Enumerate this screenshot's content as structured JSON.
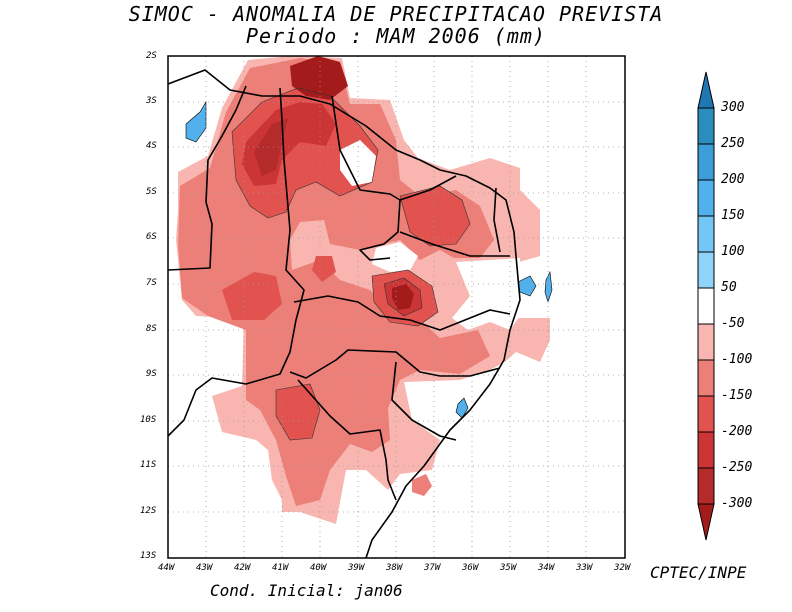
{
  "title": {
    "line1": "SIMOC -  ANOMALIA DE PRECIPITACAO PREVISTA",
    "line2": "Periodo : MAM 2006 (mm)"
  },
  "axes": {
    "lat_labels": [
      "2S",
      "3S",
      "4S",
      "5S",
      "6S",
      "7S",
      "8S",
      "9S",
      "10S",
      "11S",
      "12S",
      "13S"
    ],
    "lon_labels": [
      "44W",
      "43W",
      "42W",
      "41W",
      "40W",
      "39W",
      "38W",
      "37W",
      "36W",
      "35W",
      "34W",
      "33W",
      "32W"
    ]
  },
  "legend": {
    "labels": [
      "300",
      "250",
      "200",
      "150",
      "100",
      "50",
      "-50",
      "-100",
      "-150",
      "-200",
      "-250",
      "-300"
    ],
    "colors": [
      "#1f78b4",
      "#2b8cbe",
      "#3c9ed8",
      "#52b0ec",
      "#74c6f5",
      "#ffffff",
      "#f9b6b1",
      "#ec7f78",
      "#e2524f",
      "#cb3535",
      "#b52a2a",
      "#a31b1b"
    ]
  },
  "footer": {
    "initial_condition": "Cond. Inicial: jan06",
    "source": "CPTEC/INPE"
  }
}
